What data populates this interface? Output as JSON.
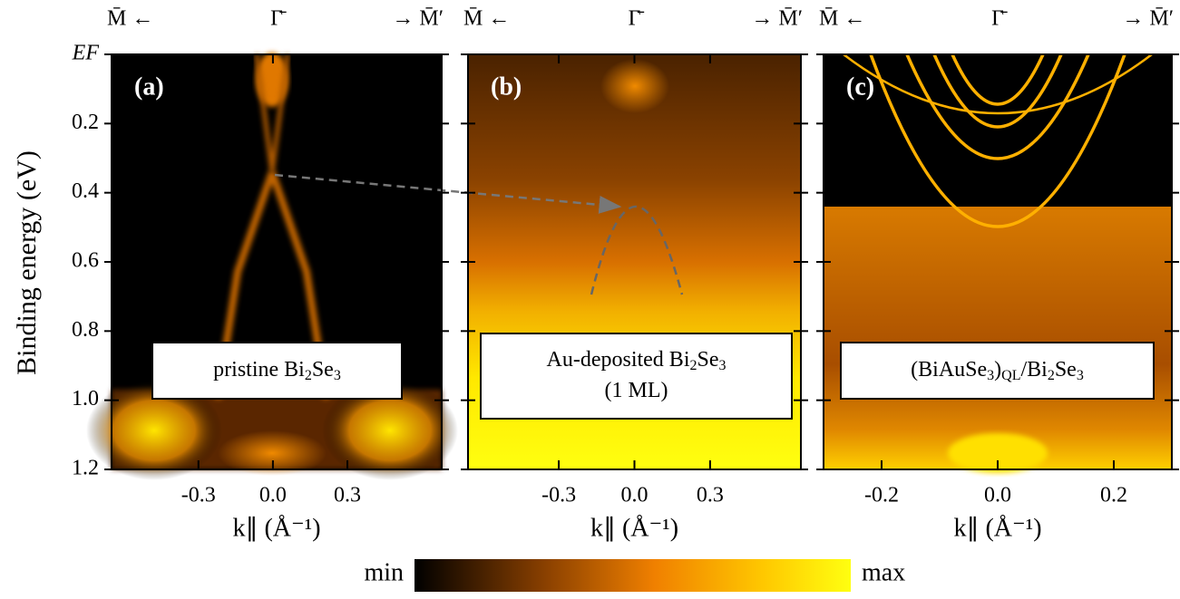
{
  "chart_data": [
    {
      "type": "heatmap",
      "panel_label": "(a)",
      "top_labels": [
        "M̄ ←",
        "Γ̄",
        "→ M̄′"
      ],
      "annotation": [
        [
          {
            "text": "pristine Bi"
          },
          {
            "sub": "2"
          },
          {
            "text": "Se"
          },
          {
            "sub": "3"
          }
        ]
      ],
      "ylabel": "Binding energy (eV)",
      "xlabel": "k∥ (Å⁻¹)",
      "xlim": [
        -0.65,
        0.68
      ],
      "xticks": [
        -0.3,
        {
          "value": 0,
          "label": "0.0"
        },
        0.3
      ],
      "ylim": [
        0,
        1.2
      ],
      "yticks": [
        {
          "value": 0,
          "label": "EF"
        },
        0.2,
        0.4,
        0.6,
        0.8,
        {
          "value": 1,
          "label": "1.0"
        },
        1.2
      ]
    },
    {
      "type": "heatmap",
      "panel_label": "(b)",
      "top_labels": [
        "M̄ ←",
        "Γ̄",
        "→ M̄′"
      ],
      "annotation": [
        [
          {
            "text": "Au-deposited Bi"
          },
          {
            "sub": "2"
          },
          {
            "text": "Se"
          },
          {
            "sub": "3"
          }
        ],
        [
          {
            "text": "(1 ML)"
          }
        ]
      ],
      "xlabel": "k∥ (Å⁻¹)",
      "xlim": [
        -0.66,
        0.66
      ],
      "xticks": [
        -0.3,
        {
          "value": 0,
          "label": "0.0"
        },
        0.3
      ],
      "ylim": [
        0,
        1.2
      ],
      "yticks": [
        0,
        0.2,
        0.4,
        0.6,
        0.8,
        1,
        1.2
      ]
    },
    {
      "type": "heatmap",
      "panel_label": "(c)",
      "top_labels": [
        "M̄ ←",
        "Γ̄",
        "→ M̄′"
      ],
      "annotation": [
        [
          {
            "text": "(BiAuSe"
          },
          {
            "sub": "3"
          },
          {
            "text": ")"
          },
          {
            "sub": "QL"
          },
          {
            "text": "/Bi"
          },
          {
            "sub": "2"
          },
          {
            "text": "Se"
          },
          {
            "sub": "3"
          }
        ]
      ],
      "xlabel": "k∥ (Å⁻¹)",
      "xlim": [
        -0.3,
        0.3
      ],
      "xticks": [
        -0.2,
        {
          "value": 0,
          "label": "0.0"
        },
        0.2
      ],
      "ylim": [
        0,
        1.2
      ],
      "yticks": [
        0,
        0.2,
        0.4,
        0.6,
        0.8,
        1,
        1.2
      ]
    }
  ],
  "colorbar": {
    "min_label": "min",
    "max_label": "max"
  }
}
